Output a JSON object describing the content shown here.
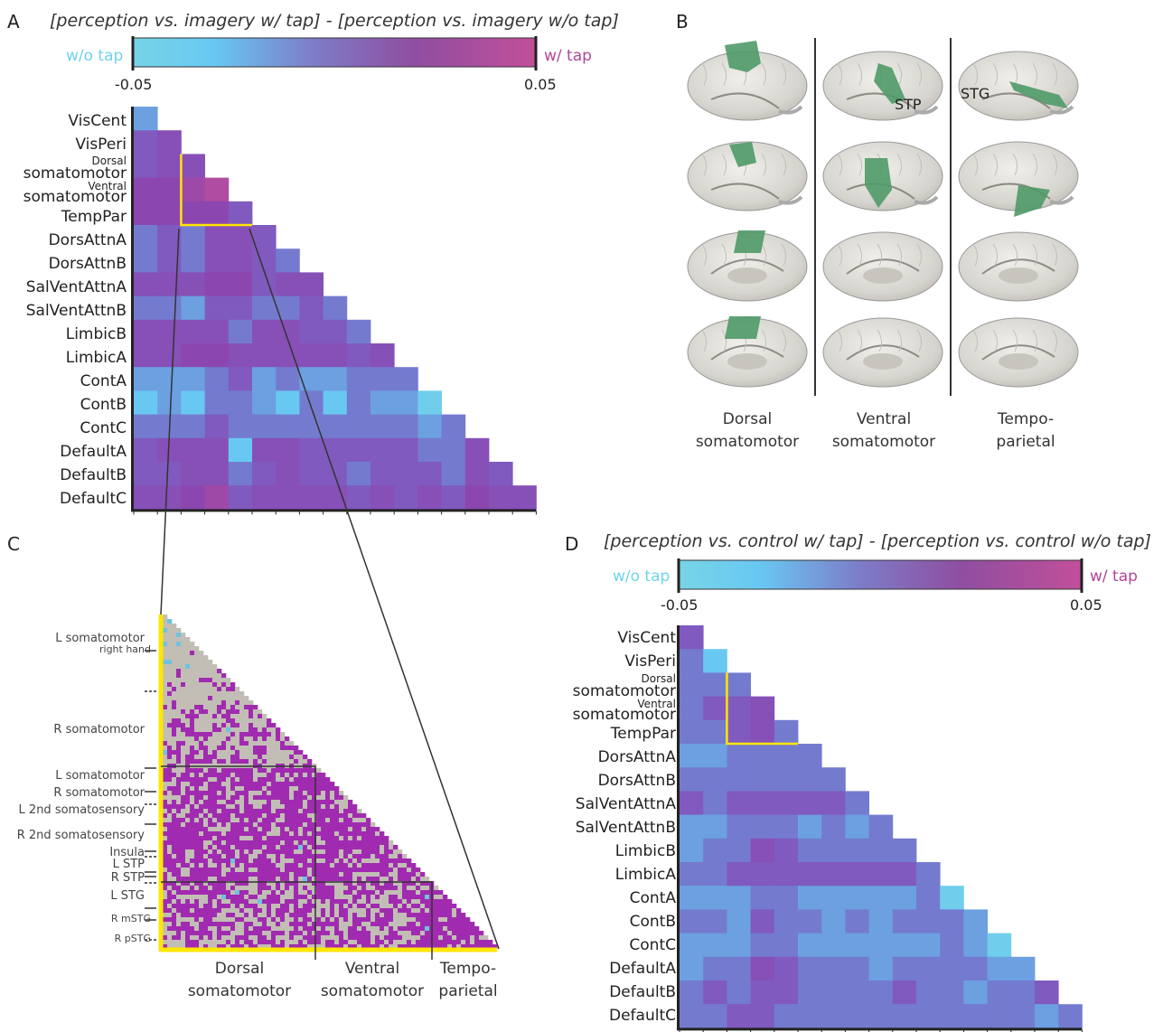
{
  "panels": {
    "A": {
      "letter": "A",
      "title": "[perception vs. imagery w/ tap] - [perception vs. imagery w/o tap]",
      "colorbar": {
        "left_label": "w/o tap",
        "right_label": "w/ tap",
        "min_tick": "-0.05",
        "max_tick": "0.05",
        "left_color": "#6fd3f0",
        "right_color": "#c84a99"
      },
      "rows": [
        "VisCent",
        "VisPeri",
        "Dorsal",
        "somatomotor",
        "Ventral",
        "somatomotor",
        "TempPar",
        "DorsAttnA",
        "DorsAttnB",
        "SalVentAttnA",
        "SalVentAttnB",
        "LimbicB",
        "LimbicA",
        "ContA",
        "ContB",
        "ContC",
        "DefaultA",
        "DefaultB",
        "DefaultC"
      ]
    },
    "B": {
      "letter": "B",
      "columns": [
        {
          "line1": "Dorsal",
          "line2": "somatomotor"
        },
        {
          "line1": "Ventral",
          "line2": "somatomotor"
        },
        {
          "line1": "Tempo-",
          "line2": "parietal"
        }
      ],
      "brain_labels": {
        "stp": "STP",
        "stg": "STG"
      },
      "highlight_color": "#4f9a68"
    },
    "C": {
      "letter": "C",
      "row_labels": [
        "L somatomotor",
        "right hand",
        "R somatomotor",
        "L somatomotor",
        "R somatomotor",
        "L 2nd somatosensory",
        "R 2nd somatosensory",
        "Insula",
        "L STP",
        "R STP",
        "L STG",
        "R mSTG",
        "R pSTG"
      ],
      "bottom_labels": [
        {
          "line1": "Dorsal",
          "line2": "somatomotor"
        },
        {
          "line1": "Ventral",
          "line2": "somatomotor"
        },
        {
          "line1": "Tempo-",
          "line2": "parietal"
        }
      ],
      "colors": {
        "background": "#c2beb5",
        "positive": "#a12bb0",
        "negative": "#6fc3df",
        "frame": "#ffe600"
      }
    },
    "D": {
      "letter": "D",
      "title": "[perception vs. control w/ tap] - [perception vs. control w/o tap]",
      "colorbar": {
        "left_label": "w/o tap",
        "right_label": "w/ tap",
        "min_tick": "-0.05",
        "max_tick": "0.05",
        "left_color": "#6fd3f0",
        "right_color": "#c84a99"
      },
      "rows": [
        "VisCent",
        "VisPeri",
        "Dorsal",
        "somatomotor",
        "Ventral",
        "somatomotor",
        "TempPar",
        "DorsAttnA",
        "DorsAttnB",
        "SalVentAttnA",
        "SalVentAttnB",
        "LimbicB",
        "LimbicA",
        "ContA",
        "ContB",
        "ContC",
        "DefaultA",
        "DefaultB",
        "DefaultC"
      ]
    }
  },
  "chart_data": [
    {
      "type": "heatmap",
      "title": "[perception vs. imagery w/ tap] - [perception vs. imagery w/o tap]",
      "networks": [
        "VisCent",
        "VisPeri",
        "Dorsal somatomotor",
        "Ventral somatomotor",
        "TempPar",
        "DorsAttnA",
        "DorsAttnB",
        "SalVentAttnA",
        "SalVentAttnB",
        "LimbicB",
        "LimbicA",
        "ContA",
        "ContB",
        "ContC",
        "DefaultA",
        "DefaultB",
        "DefaultC"
      ],
      "value_range": [
        -0.05,
        0.05
      ],
      "lower_triangle": [
        [
          -0.02
        ],
        [
          0.0,
          0.01
        ],
        [
          0.0,
          0.01,
          0.01
        ],
        [
          0.02,
          0.02,
          0.03,
          0.04
        ],
        [
          0.02,
          0.02,
          0.02,
          0.02,
          0.0
        ],
        [
          -0.01,
          0.0,
          -0.01,
          0.01,
          0.01,
          0.0
        ],
        [
          -0.01,
          0.0,
          -0.01,
          0.01,
          0.01,
          0.0,
          -0.01
        ],
        [
          0.01,
          0.01,
          0.01,
          0.02,
          0.02,
          0.0,
          0.01,
          0.01
        ],
        [
          -0.01,
          -0.01,
          -0.02,
          0.0,
          0.0,
          -0.01,
          -0.01,
          0.0,
          -0.01
        ],
        [
          0.01,
          0.01,
          0.01,
          0.01,
          -0.01,
          0.01,
          0.01,
          0.0,
          0.0,
          -0.01
        ],
        [
          0.01,
          0.01,
          0.02,
          0.02,
          0.01,
          0.01,
          0.01,
          0.01,
          0.01,
          0.0,
          0.01
        ],
        [
          -0.02,
          -0.02,
          -0.02,
          -0.01,
          0.0,
          -0.02,
          -0.01,
          -0.02,
          -0.02,
          -0.01,
          -0.01,
          -0.01
        ],
        [
          -0.03,
          -0.02,
          -0.03,
          -0.01,
          -0.01,
          -0.02,
          -0.03,
          -0.01,
          -0.03,
          -0.01,
          -0.02,
          -0.02,
          -0.04
        ],
        [
          -0.01,
          -0.01,
          -0.01,
          0.0,
          -0.01,
          -0.01,
          -0.01,
          -0.01,
          -0.01,
          -0.01,
          -0.01,
          -0.01,
          -0.02,
          -0.01
        ],
        [
          0.0,
          0.01,
          0.01,
          0.01,
          -0.03,
          0.01,
          0.01,
          0.0,
          0.0,
          0.0,
          0.0,
          0.0,
          -0.01,
          -0.01,
          0.01
        ],
        [
          0.0,
          0.0,
          0.01,
          0.01,
          -0.01,
          0.0,
          0.01,
          0.0,
          0.0,
          -0.01,
          0.0,
          0.0,
          0.0,
          -0.01,
          0.01,
          0.0
        ],
        [
          0.01,
          0.01,
          0.02,
          0.03,
          0.0,
          0.01,
          0.01,
          0.01,
          0.01,
          0.0,
          0.01,
          0.0,
          0.01,
          0.0,
          0.02,
          0.01,
          0.01
        ]
      ]
    },
    {
      "type": "heatmap",
      "title": "[perception vs. control w/ tap] - [perception vs. control w/o tap]",
      "networks": [
        "VisCent",
        "VisPeri",
        "Dorsal somatomotor",
        "Ventral somatomotor",
        "TempPar",
        "DorsAttnA",
        "DorsAttnB",
        "SalVentAttnA",
        "SalVentAttnB",
        "LimbicB",
        "LimbicA",
        "ContA",
        "ContB",
        "ContC",
        "DefaultA",
        "DefaultB",
        "DefaultC"
      ],
      "value_range": [
        -0.05,
        0.05
      ],
      "lower_triangle": [
        [
          0.0
        ],
        [
          -0.01,
          -0.03
        ],
        [
          -0.01,
          -0.01,
          -0.01
        ],
        [
          -0.01,
          0.0,
          0.0,
          0.01
        ],
        [
          -0.01,
          -0.01,
          0.0,
          0.01,
          -0.01
        ],
        [
          -0.02,
          -0.02,
          -0.01,
          -0.01,
          -0.01,
          -0.01
        ],
        [
          -0.01,
          -0.01,
          -0.01,
          -0.01,
          -0.01,
          -0.01,
          -0.01
        ],
        [
          0.0,
          -0.01,
          0.0,
          0.0,
          0.0,
          0.0,
          0.0,
          -0.01
        ],
        [
          -0.02,
          -0.02,
          -0.01,
          -0.01,
          -0.01,
          -0.02,
          -0.01,
          -0.02,
          -0.01
        ],
        [
          -0.02,
          -0.01,
          -0.01,
          0.01,
          0.0,
          -0.01,
          -0.01,
          -0.01,
          -0.01,
          -0.01
        ],
        [
          -0.01,
          -0.01,
          0.0,
          0.0,
          0.0,
          0.0,
          0.0,
          0.0,
          0.0,
          0.0,
          -0.01
        ],
        [
          -0.02,
          -0.02,
          -0.02,
          -0.01,
          -0.01,
          -0.02,
          -0.02,
          -0.02,
          -0.02,
          -0.02,
          -0.01,
          -0.04
        ],
        [
          -0.01,
          -0.01,
          -0.02,
          0.0,
          -0.01,
          -0.01,
          -0.02,
          -0.01,
          -0.02,
          -0.01,
          -0.01,
          -0.01,
          -0.02
        ],
        [
          -0.02,
          -0.02,
          -0.02,
          -0.01,
          -0.01,
          -0.02,
          -0.02,
          -0.02,
          -0.02,
          -0.02,
          -0.02,
          -0.01,
          -0.02,
          -0.04
        ],
        [
          -0.02,
          -0.01,
          -0.01,
          0.01,
          0.0,
          -0.01,
          -0.01,
          -0.01,
          -0.02,
          -0.01,
          -0.01,
          -0.01,
          -0.01,
          -0.02,
          -0.02
        ],
        [
          -0.01,
          0.0,
          -0.01,
          0.0,
          0.0,
          -0.01,
          -0.01,
          -0.01,
          -0.01,
          0.0,
          -0.01,
          -0.01,
          -0.02,
          -0.01,
          -0.01,
          0.0
        ],
        [
          -0.01,
          -0.01,
          0.0,
          0.0,
          -0.01,
          -0.01,
          -0.01,
          -0.01,
          -0.01,
          -0.01,
          -0.01,
          -0.01,
          -0.01,
          -0.01,
          -0.01,
          -0.02,
          -0.01
        ]
      ]
    }
  ]
}
